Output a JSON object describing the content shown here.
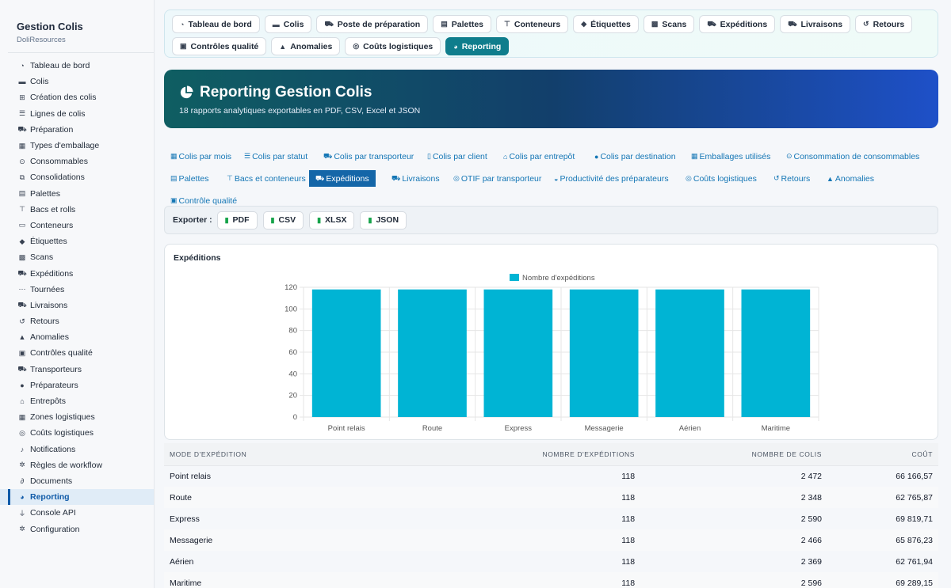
{
  "sidebar": {
    "title": "Gestion Colis",
    "subtitle": "DoliResources",
    "items": [
      {
        "label": "Tableau de bord",
        "icon": "dashboard-icon"
      },
      {
        "label": "Colis",
        "icon": "box-icon"
      },
      {
        "label": "Création des colis",
        "icon": "plus-square-icon"
      },
      {
        "label": "Lignes de colis",
        "icon": "list-icon"
      },
      {
        "label": "Préparation",
        "icon": "dolly-icon"
      },
      {
        "label": "Types d'emballage",
        "icon": "boxes-icon"
      },
      {
        "label": "Consommables",
        "icon": "magnifier-icon"
      },
      {
        "label": "Consolidations",
        "icon": "object-group-icon"
      },
      {
        "label": "Palettes",
        "icon": "pallet-icon"
      },
      {
        "label": "Bacs et rolls",
        "icon": "sitemap-icon"
      },
      {
        "label": "Conteneurs",
        "icon": "container-icon"
      },
      {
        "label": "Étiquettes",
        "icon": "tags-icon"
      },
      {
        "label": "Scans",
        "icon": "qrcode-icon"
      },
      {
        "label": "Expéditions",
        "icon": "truck-icon"
      },
      {
        "label": "Tournées",
        "icon": "route-icon"
      },
      {
        "label": "Livraisons",
        "icon": "truck-loading-icon"
      },
      {
        "label": "Retours",
        "icon": "undo-icon"
      },
      {
        "label": "Anomalies",
        "icon": "warning-icon"
      },
      {
        "label": "Contrôles qualité",
        "icon": "clipboard-check-icon"
      },
      {
        "label": "Transporteurs",
        "icon": "truck-icon"
      },
      {
        "label": "Préparateurs",
        "icon": "users-icon"
      },
      {
        "label": "Entrepôts",
        "icon": "warehouse-icon"
      },
      {
        "label": "Zones logistiques",
        "icon": "grid-icon"
      },
      {
        "label": "Coûts logistiques",
        "icon": "coins-icon"
      },
      {
        "label": "Notifications",
        "icon": "bell-icon"
      },
      {
        "label": "Règles de workflow",
        "icon": "cogs-icon"
      },
      {
        "label": "Documents",
        "icon": "paperclip-icon"
      },
      {
        "label": "Reporting",
        "icon": "pie-chart-icon",
        "active": true
      },
      {
        "label": "Console API",
        "icon": "plug-icon"
      },
      {
        "label": "Configuration",
        "icon": "gear-icon"
      }
    ]
  },
  "tabs": {
    "row1": [
      {
        "label": "Tableau de bord",
        "icon": "dashboard-icon"
      },
      {
        "label": "Colis",
        "icon": "box-icon"
      },
      {
        "label": "Poste de préparation",
        "icon": "dolly-icon"
      },
      {
        "label": "Palettes",
        "icon": "pallet-icon"
      },
      {
        "label": "Conteneurs",
        "icon": "sitemap-icon"
      },
      {
        "label": "Étiquettes",
        "icon": "tags-icon"
      },
      {
        "label": "Scans",
        "icon": "qrcode-icon"
      },
      {
        "label": "Expéditions",
        "icon": "truck-icon"
      },
      {
        "label": "Livraisons",
        "icon": "truck-loading-icon"
      },
      {
        "label": "Retours",
        "icon": "undo-icon"
      }
    ],
    "row2": [
      {
        "label": "Contrôles qualité",
        "icon": "clipboard-check-icon"
      },
      {
        "label": "Anomalies",
        "icon": "warning-icon"
      },
      {
        "label": "Coûts logistiques",
        "icon": "coins-icon"
      },
      {
        "label": "Reporting",
        "icon": "pie-chart-icon",
        "active": true
      }
    ]
  },
  "hero": {
    "title": "Reporting Gestion Colis",
    "subtitle": "18 rapports analytiques exportables en PDF, CSV, Excel et JSON"
  },
  "reports": [
    {
      "label": "Colis par mois",
      "icon": "calendar-icon"
    },
    {
      "label": "Colis par statut",
      "icon": "list-icon"
    },
    {
      "label": "Colis par transporteur",
      "icon": "truck-icon"
    },
    {
      "label": "Colis par client",
      "icon": "building-icon"
    },
    {
      "label": "Colis par entrepôt",
      "icon": "warehouse-icon"
    },
    {
      "label": "Colis par destination",
      "icon": "map-pin-icon"
    },
    {
      "label": "Emballages utilisés",
      "icon": "boxes-icon"
    },
    {
      "label": "Consommation de consommables",
      "icon": "magnifier-icon"
    },
    {
      "label": "Palettes",
      "icon": "pallet-icon"
    },
    {
      "label": "Bacs et conteneurs",
      "icon": "sitemap-icon"
    },
    {
      "label": "Expéditions",
      "icon": "truck-icon",
      "active": true
    },
    {
      "label": "Livraisons",
      "icon": "truck-loading-icon"
    },
    {
      "label": "OTIF par transporteur",
      "icon": "target-icon"
    },
    {
      "label": "Productivité des préparateurs",
      "icon": "gauge-icon"
    },
    {
      "label": "Coûts logistiques",
      "icon": "coins-icon"
    },
    {
      "label": "Retours",
      "icon": "undo-icon"
    },
    {
      "label": "Anomalies",
      "icon": "warning-icon"
    },
    {
      "label": "Contrôle qualité",
      "icon": "clipboard-check-icon"
    }
  ],
  "export": {
    "label": "Exporter :",
    "buttons": [
      {
        "label": "PDF",
        "icon": "file-icon"
      },
      {
        "label": "CSV",
        "icon": "file-icon"
      },
      {
        "label": "XLSX",
        "icon": "file-icon"
      },
      {
        "label": "JSON",
        "icon": "file-icon"
      }
    ]
  },
  "chart_data": {
    "type": "bar",
    "title": "Expéditions",
    "categories": [
      "Point relais",
      "Route",
      "Express",
      "Messagerie",
      "Aérien",
      "Maritime"
    ],
    "series": [
      {
        "name": "Nombre d'expéditions",
        "values": [
          118,
          118,
          118,
          118,
          118,
          118
        ]
      }
    ],
    "ylim": [
      0,
      120
    ],
    "yticks": [
      0,
      20,
      40,
      60,
      80,
      100,
      120
    ],
    "legend": "top",
    "grid": true,
    "bar_color": "#00b4d4"
  },
  "table": {
    "headers": [
      "Mode d'expédition",
      "Nombre d'expéditions",
      "Nombre de colis",
      "Coût"
    ],
    "rows": [
      [
        "Point relais",
        "118",
        "2 472",
        "66 166,57"
      ],
      [
        "Route",
        "118",
        "2 348",
        "62 765,87"
      ],
      [
        "Express",
        "118",
        "2 590",
        "69 819,71"
      ],
      [
        "Messagerie",
        "118",
        "2 466",
        "65 876,23"
      ],
      [
        "Aérien",
        "118",
        "2 369",
        "62 761,94"
      ],
      [
        "Maritime",
        "118",
        "2 596",
        "69 289,15"
      ]
    ]
  }
}
